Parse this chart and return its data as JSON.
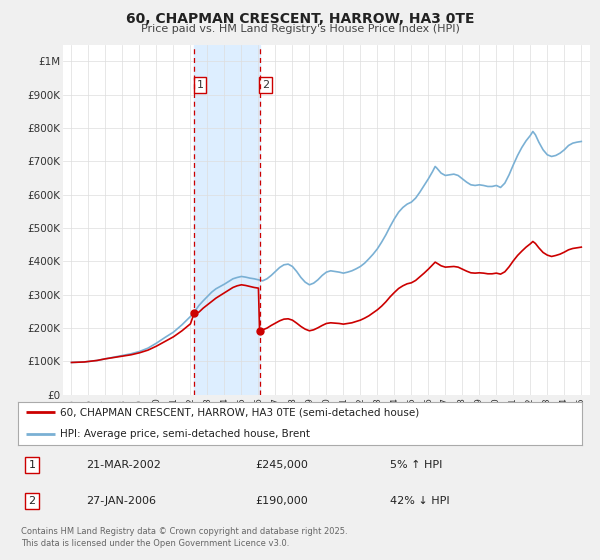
{
  "title": "60, CHAPMAN CRESCENT, HARROW, HA3 0TE",
  "subtitle": "Price paid vs. HM Land Registry's House Price Index (HPI)",
  "legend_line1": "60, CHAPMAN CRESCENT, HARROW, HA3 0TE (semi-detached house)",
  "legend_line2": "HPI: Average price, semi-detached house, Brent",
  "footer": "Contains HM Land Registry data © Crown copyright and database right 2025.\nThis data is licensed under the Open Government Licence v3.0.",
  "transaction1_date": "21-MAR-2002",
  "transaction1_price": "£245,000",
  "transaction1_hpi": "5% ↑ HPI",
  "transaction2_date": "27-JAN-2006",
  "transaction2_price": "£190,000",
  "transaction2_hpi": "42% ↓ HPI",
  "transaction1_year": 2002.22,
  "transaction2_year": 2006.07,
  "transaction1_price_val": 245000,
  "transaction2_price_val": 190000,
  "red_line_color": "#cc0000",
  "blue_line_color": "#7ab0d4",
  "shaded_region_color": "#ddeeff",
  "vline_color": "#cc0000",
  "ylim": [
    0,
    1050000
  ],
  "yticks": [
    0,
    100000,
    200000,
    300000,
    400000,
    500000,
    600000,
    700000,
    800000,
    900000,
    1000000
  ],
  "ytick_labels": [
    "£0",
    "£100K",
    "£200K",
    "£300K",
    "£400K",
    "£500K",
    "£600K",
    "£700K",
    "£800K",
    "£900K",
    "£1M"
  ],
  "xlim_start": 1994.5,
  "xlim_end": 2025.5,
  "background_color": "#f0f0f0",
  "plot_background_color": "#ffffff",
  "grid_color": "#dddddd",
  "blue_data": [
    [
      1995.0,
      97000
    ],
    [
      1995.25,
      97500
    ],
    [
      1995.5,
      98000
    ],
    [
      1995.75,
      98500
    ],
    [
      1996.0,
      100000
    ],
    [
      1996.5,
      103000
    ],
    [
      1997.0,
      108000
    ],
    [
      1997.5,
      113000
    ],
    [
      1998.0,
      118000
    ],
    [
      1998.5,
      123000
    ],
    [
      1999.0,
      130000
    ],
    [
      1999.5,
      140000
    ],
    [
      2000.0,
      155000
    ],
    [
      2000.5,
      172000
    ],
    [
      2001.0,
      188000
    ],
    [
      2001.5,
      210000
    ],
    [
      2002.0,
      235000
    ],
    [
      2002.25,
      250000
    ],
    [
      2002.5,
      268000
    ],
    [
      2002.75,
      282000
    ],
    [
      2003.0,
      295000
    ],
    [
      2003.25,
      308000
    ],
    [
      2003.5,
      318000
    ],
    [
      2003.75,
      325000
    ],
    [
      2004.0,
      332000
    ],
    [
      2004.25,
      340000
    ],
    [
      2004.5,
      348000
    ],
    [
      2004.75,
      352000
    ],
    [
      2005.0,
      355000
    ],
    [
      2005.25,
      353000
    ],
    [
      2005.5,
      350000
    ],
    [
      2005.75,
      348000
    ],
    [
      2006.0,
      345000
    ],
    [
      2006.25,
      342000
    ],
    [
      2006.5,
      348000
    ],
    [
      2006.75,
      358000
    ],
    [
      2007.0,
      370000
    ],
    [
      2007.25,
      382000
    ],
    [
      2007.5,
      390000
    ],
    [
      2007.75,
      392000
    ],
    [
      2008.0,
      385000
    ],
    [
      2008.25,
      370000
    ],
    [
      2008.5,
      352000
    ],
    [
      2008.75,
      338000
    ],
    [
      2009.0,
      330000
    ],
    [
      2009.25,
      335000
    ],
    [
      2009.5,
      345000
    ],
    [
      2009.75,
      358000
    ],
    [
      2010.0,
      368000
    ],
    [
      2010.25,
      372000
    ],
    [
      2010.5,
      370000
    ],
    [
      2010.75,
      368000
    ],
    [
      2011.0,
      365000
    ],
    [
      2011.25,
      368000
    ],
    [
      2011.5,
      372000
    ],
    [
      2011.75,
      378000
    ],
    [
      2012.0,
      385000
    ],
    [
      2012.25,
      395000
    ],
    [
      2012.5,
      408000
    ],
    [
      2012.75,
      422000
    ],
    [
      2013.0,
      438000
    ],
    [
      2013.25,
      458000
    ],
    [
      2013.5,
      480000
    ],
    [
      2013.75,
      505000
    ],
    [
      2014.0,
      528000
    ],
    [
      2014.25,
      548000
    ],
    [
      2014.5,
      562000
    ],
    [
      2014.75,
      572000
    ],
    [
      2015.0,
      578000
    ],
    [
      2015.25,
      590000
    ],
    [
      2015.5,
      608000
    ],
    [
      2015.75,
      628000
    ],
    [
      2016.0,
      648000
    ],
    [
      2016.25,
      670000
    ],
    [
      2016.4,
      685000
    ],
    [
      2016.5,
      680000
    ],
    [
      2016.75,
      665000
    ],
    [
      2017.0,
      658000
    ],
    [
      2017.25,
      660000
    ],
    [
      2017.5,
      662000
    ],
    [
      2017.75,
      658000
    ],
    [
      2018.0,
      648000
    ],
    [
      2018.25,
      638000
    ],
    [
      2018.5,
      630000
    ],
    [
      2018.75,
      628000
    ],
    [
      2019.0,
      630000
    ],
    [
      2019.25,
      628000
    ],
    [
      2019.5,
      625000
    ],
    [
      2019.75,
      625000
    ],
    [
      2020.0,
      628000
    ],
    [
      2020.25,
      622000
    ],
    [
      2020.5,
      635000
    ],
    [
      2020.75,
      660000
    ],
    [
      2021.0,
      690000
    ],
    [
      2021.25,
      718000
    ],
    [
      2021.5,
      742000
    ],
    [
      2021.75,
      762000
    ],
    [
      2022.0,
      778000
    ],
    [
      2022.15,
      790000
    ],
    [
      2022.3,
      780000
    ],
    [
      2022.5,
      758000
    ],
    [
      2022.75,
      735000
    ],
    [
      2023.0,
      720000
    ],
    [
      2023.25,
      715000
    ],
    [
      2023.5,
      718000
    ],
    [
      2023.75,
      725000
    ],
    [
      2024.0,
      735000
    ],
    [
      2024.25,
      748000
    ],
    [
      2024.5,
      755000
    ],
    [
      2024.75,
      758000
    ],
    [
      2025.0,
      760000
    ]
  ],
  "red_data": [
    [
      1995.0,
      97000
    ],
    [
      1995.25,
      97500
    ],
    [
      1995.5,
      98000
    ],
    [
      1995.75,
      98500
    ],
    [
      1996.0,
      100000
    ],
    [
      1996.5,
      103000
    ],
    [
      1997.0,
      108000
    ],
    [
      1997.5,
      112000
    ],
    [
      1998.0,
      116000
    ],
    [
      1998.5,
      120000
    ],
    [
      1999.0,
      126000
    ],
    [
      1999.5,
      134000
    ],
    [
      2000.0,
      146000
    ],
    [
      2000.5,
      160000
    ],
    [
      2001.0,
      174000
    ],
    [
      2001.5,
      192000
    ],
    [
      2002.0,
      213000
    ],
    [
      2002.22,
      245000
    ],
    [
      2002.5,
      248000
    ],
    [
      2002.75,
      260000
    ],
    [
      2003.0,
      270000
    ],
    [
      2003.25,
      280000
    ],
    [
      2003.5,
      290000
    ],
    [
      2003.75,
      298000
    ],
    [
      2004.0,
      306000
    ],
    [
      2004.25,
      314000
    ],
    [
      2004.5,
      322000
    ],
    [
      2004.75,
      327000
    ],
    [
      2005.0,
      330000
    ],
    [
      2005.25,
      328000
    ],
    [
      2005.5,
      325000
    ],
    [
      2005.75,
      322000
    ],
    [
      2006.0,
      320000
    ],
    [
      2006.07,
      190000
    ],
    [
      2006.25,
      195000
    ],
    [
      2006.5,
      200000
    ],
    [
      2006.75,
      208000
    ],
    [
      2007.0,
      215000
    ],
    [
      2007.25,
      222000
    ],
    [
      2007.5,
      227000
    ],
    [
      2007.75,
      228000
    ],
    [
      2008.0,
      224000
    ],
    [
      2008.25,
      215000
    ],
    [
      2008.5,
      205000
    ],
    [
      2008.75,
      197000
    ],
    [
      2009.0,
      192000
    ],
    [
      2009.25,
      195000
    ],
    [
      2009.5,
      201000
    ],
    [
      2009.75,
      208000
    ],
    [
      2010.0,
      214000
    ],
    [
      2010.25,
      216000
    ],
    [
      2010.5,
      215000
    ],
    [
      2010.75,
      214000
    ],
    [
      2011.0,
      212000
    ],
    [
      2011.25,
      214000
    ],
    [
      2011.5,
      216000
    ],
    [
      2011.75,
      220000
    ],
    [
      2012.0,
      224000
    ],
    [
      2012.25,
      230000
    ],
    [
      2012.5,
      237000
    ],
    [
      2012.75,
      246000
    ],
    [
      2013.0,
      255000
    ],
    [
      2013.25,
      266000
    ],
    [
      2013.5,
      279000
    ],
    [
      2013.75,
      294000
    ],
    [
      2014.0,
      307000
    ],
    [
      2014.25,
      319000
    ],
    [
      2014.5,
      327000
    ],
    [
      2014.75,
      333000
    ],
    [
      2015.0,
      336000
    ],
    [
      2015.25,
      343000
    ],
    [
      2015.5,
      354000
    ],
    [
      2015.75,
      365000
    ],
    [
      2016.0,
      377000
    ],
    [
      2016.25,
      390000
    ],
    [
      2016.4,
      398000
    ],
    [
      2016.5,
      395000
    ],
    [
      2016.75,
      387000
    ],
    [
      2017.0,
      383000
    ],
    [
      2017.25,
      384000
    ],
    [
      2017.5,
      385000
    ],
    [
      2017.75,
      383000
    ],
    [
      2018.0,
      377000
    ],
    [
      2018.25,
      371000
    ],
    [
      2018.5,
      366000
    ],
    [
      2018.75,
      365000
    ],
    [
      2019.0,
      366000
    ],
    [
      2019.25,
      365000
    ],
    [
      2019.5,
      363000
    ],
    [
      2019.75,
      363000
    ],
    [
      2020.0,
      365000
    ],
    [
      2020.25,
      362000
    ],
    [
      2020.5,
      369000
    ],
    [
      2020.75,
      384000
    ],
    [
      2021.0,
      402000
    ],
    [
      2021.25,
      418000
    ],
    [
      2021.5,
      431000
    ],
    [
      2021.75,
      443000
    ],
    [
      2022.0,
      453000
    ],
    [
      2022.15,
      460000
    ],
    [
      2022.3,
      454000
    ],
    [
      2022.5,
      441000
    ],
    [
      2022.75,
      427000
    ],
    [
      2023.0,
      419000
    ],
    [
      2023.25,
      415000
    ],
    [
      2023.5,
      418000
    ],
    [
      2023.75,
      422000
    ],
    [
      2024.0,
      428000
    ],
    [
      2024.25,
      435000
    ],
    [
      2024.5,
      439000
    ],
    [
      2024.75,
      441000
    ],
    [
      2025.0,
      443000
    ]
  ]
}
